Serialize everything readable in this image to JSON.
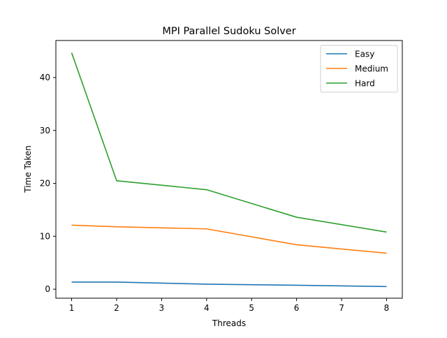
{
  "chart_data": {
    "type": "line",
    "title": "MPI Parallel Sudoku Solver",
    "xlabel": "Threads",
    "ylabel": "Time Taken",
    "x": [
      1,
      2,
      4,
      6,
      8
    ],
    "xticks": [
      1,
      2,
      3,
      4,
      5,
      6,
      7,
      8
    ],
    "xlim": [
      0.65,
      8.35
    ],
    "yticks": [
      0,
      10,
      20,
      30,
      40
    ],
    "ylim": [
      -1.7,
      47.0
    ],
    "grid": false,
    "legend_position": "top-right",
    "series": [
      {
        "name": "Easy",
        "color": "#1f77b4",
        "values": [
          1.35,
          1.35,
          0.95,
          0.75,
          0.5
        ]
      },
      {
        "name": "Medium",
        "color": "#ff7f0e",
        "values": [
          12.1,
          11.8,
          11.4,
          8.4,
          6.8
        ]
      },
      {
        "name": "Hard",
        "color": "#2ca02c",
        "values": [
          44.7,
          20.5,
          18.8,
          13.6,
          10.8
        ]
      }
    ]
  }
}
